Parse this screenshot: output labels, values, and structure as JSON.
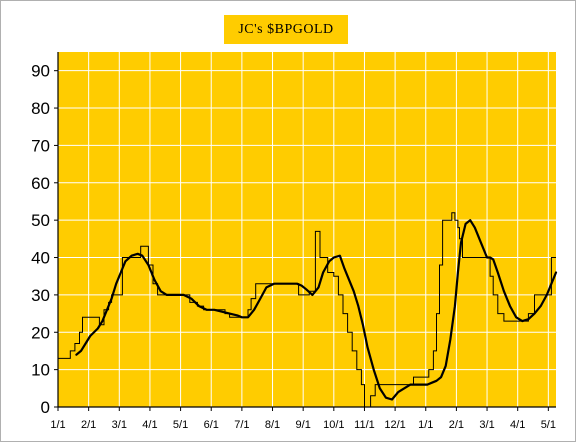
{
  "chart_data": {
    "type": "line",
    "title": "JC's $BPGOLD",
    "xlabel": "",
    "ylabel": "",
    "ylim": [
      0,
      95
    ],
    "yticks": [
      0,
      10,
      20,
      30,
      40,
      50,
      60,
      70,
      80,
      90
    ],
    "x_tick_labels": [
      "1/1",
      "2/1",
      "3/1",
      "4/1",
      "5/1",
      "6/1",
      "7/1",
      "8/1",
      "9/1",
      "10/1",
      "11/1",
      "12/1",
      "1/1",
      "2/1",
      "3/1",
      "4/1",
      "5/1"
    ],
    "x_range_months": [
      0,
      16.25
    ],
    "grid": true,
    "legend": "none",
    "colors": {
      "plot_background": "#ffcc00",
      "grid": "#ffffff",
      "line": "#000000"
    },
    "series": [
      {
        "style": "thin-step",
        "x": [
          0,
          0.3,
          0.4,
          0.55,
          0.7,
          0.8,
          1.05,
          1.35,
          1.5,
          1.65,
          1.75,
          2.1,
          2.25,
          2.4,
          2.7,
          2.85,
          2.95,
          3.1,
          3.25,
          3.55,
          3.7,
          3.9,
          4.05,
          4.3,
          4.55,
          4.75,
          4.9,
          5.0,
          5.2,
          5.45,
          5.6,
          5.8,
          6.05,
          6.2,
          6.3,
          6.45,
          6.7,
          6.9,
          7.1,
          7.4,
          7.7,
          7.85,
          8.0,
          8.1,
          8.2,
          8.4,
          8.55,
          8.8,
          9.0,
          9.15,
          9.3,
          9.45,
          9.6,
          9.75,
          9.9,
          10.0,
          10.2,
          10.35,
          10.45,
          10.55,
          10.7,
          10.85,
          11.0,
          11.1,
          11.25,
          11.45,
          11.6,
          11.8,
          12.0,
          12.1,
          12.25,
          12.35,
          12.45,
          12.55,
          12.7,
          12.85,
          12.95,
          13.05,
          13.1,
          13.2,
          13.45,
          13.6,
          13.8,
          14.0,
          14.1,
          14.2,
          14.35,
          14.55,
          14.7,
          14.85,
          15.1,
          15.35,
          15.55,
          15.75,
          15.95,
          16.1,
          16.25
        ],
        "y": [
          13,
          13,
          15,
          17,
          20,
          24,
          24,
          22,
          26,
          28,
          30,
          40,
          40,
          40,
          43,
          43,
          38,
          33,
          30,
          30,
          30,
          30,
          30,
          28,
          27,
          26,
          26,
          26,
          26,
          25,
          24,
          24,
          24,
          26,
          29,
          33,
          33,
          33,
          33,
          33,
          33,
          30,
          30,
          30,
          31,
          47,
          40,
          36,
          35,
          30,
          25,
          20,
          15,
          10,
          6,
          0,
          3,
          6,
          6,
          6,
          6,
          6,
          6,
          6,
          6,
          6,
          8,
          8,
          8,
          10,
          15,
          25,
          38,
          50,
          50,
          52,
          50,
          48,
          45,
          40,
          40,
          40,
          40,
          40,
          35,
          30,
          25,
          23,
          23,
          23,
          23,
          25,
          30,
          30,
          30,
          40,
          40
        ]
      },
      {
        "style": "thick-smooth",
        "x": [
          0.6,
          0.75,
          0.9,
          1.05,
          1.3,
          1.45,
          1.6,
          1.75,
          1.9,
          2.05,
          2.2,
          2.4,
          2.6,
          2.75,
          2.95,
          3.15,
          3.35,
          3.55,
          3.8,
          4.1,
          4.35,
          4.6,
          4.85,
          5.1,
          5.35,
          5.6,
          5.85,
          6.0,
          6.2,
          6.4,
          6.6,
          6.8,
          7.05,
          7.3,
          7.55,
          7.8,
          7.95,
          8.1,
          8.3,
          8.5,
          8.65,
          8.85,
          9.0,
          9.2,
          9.35,
          9.5,
          9.65,
          9.8,
          9.95,
          10.1,
          10.3,
          10.5,
          10.7,
          10.9,
          11.1,
          11.3,
          11.5,
          11.7,
          11.9,
          12.05,
          12.2,
          12.35,
          12.5,
          12.65,
          12.8,
          12.95,
          13.05,
          13.15,
          13.3,
          13.45,
          13.6,
          13.8,
          14.0,
          14.1,
          14.2,
          14.35,
          14.55,
          14.75,
          14.95,
          15.15,
          15.35,
          15.55,
          15.75,
          15.95,
          16.1,
          16.25
        ],
        "y": [
          14,
          15,
          17,
          19,
          21,
          23,
          26,
          29,
          33,
          36,
          39,
          40.5,
          41,
          40.5,
          38,
          34,
          31,
          30,
          30,
          30,
          29,
          27,
          26,
          26,
          25.5,
          25,
          24.5,
          24,
          24,
          26,
          29,
          32,
          33,
          33,
          33,
          33,
          32.5,
          31.5,
          30,
          32,
          36,
          39,
          40,
          40.5,
          37,
          34,
          31,
          27,
          22,
          16,
          10,
          5,
          2.5,
          2,
          4,
          5,
          6,
          6,
          6,
          6,
          6.5,
          7,
          8,
          11,
          18,
          27,
          36,
          44,
          49,
          50,
          48,
          44,
          40,
          40,
          39.5,
          36,
          31,
          27,
          24,
          23,
          23.5,
          25,
          27,
          30,
          33,
          36
        ]
      }
    ]
  }
}
